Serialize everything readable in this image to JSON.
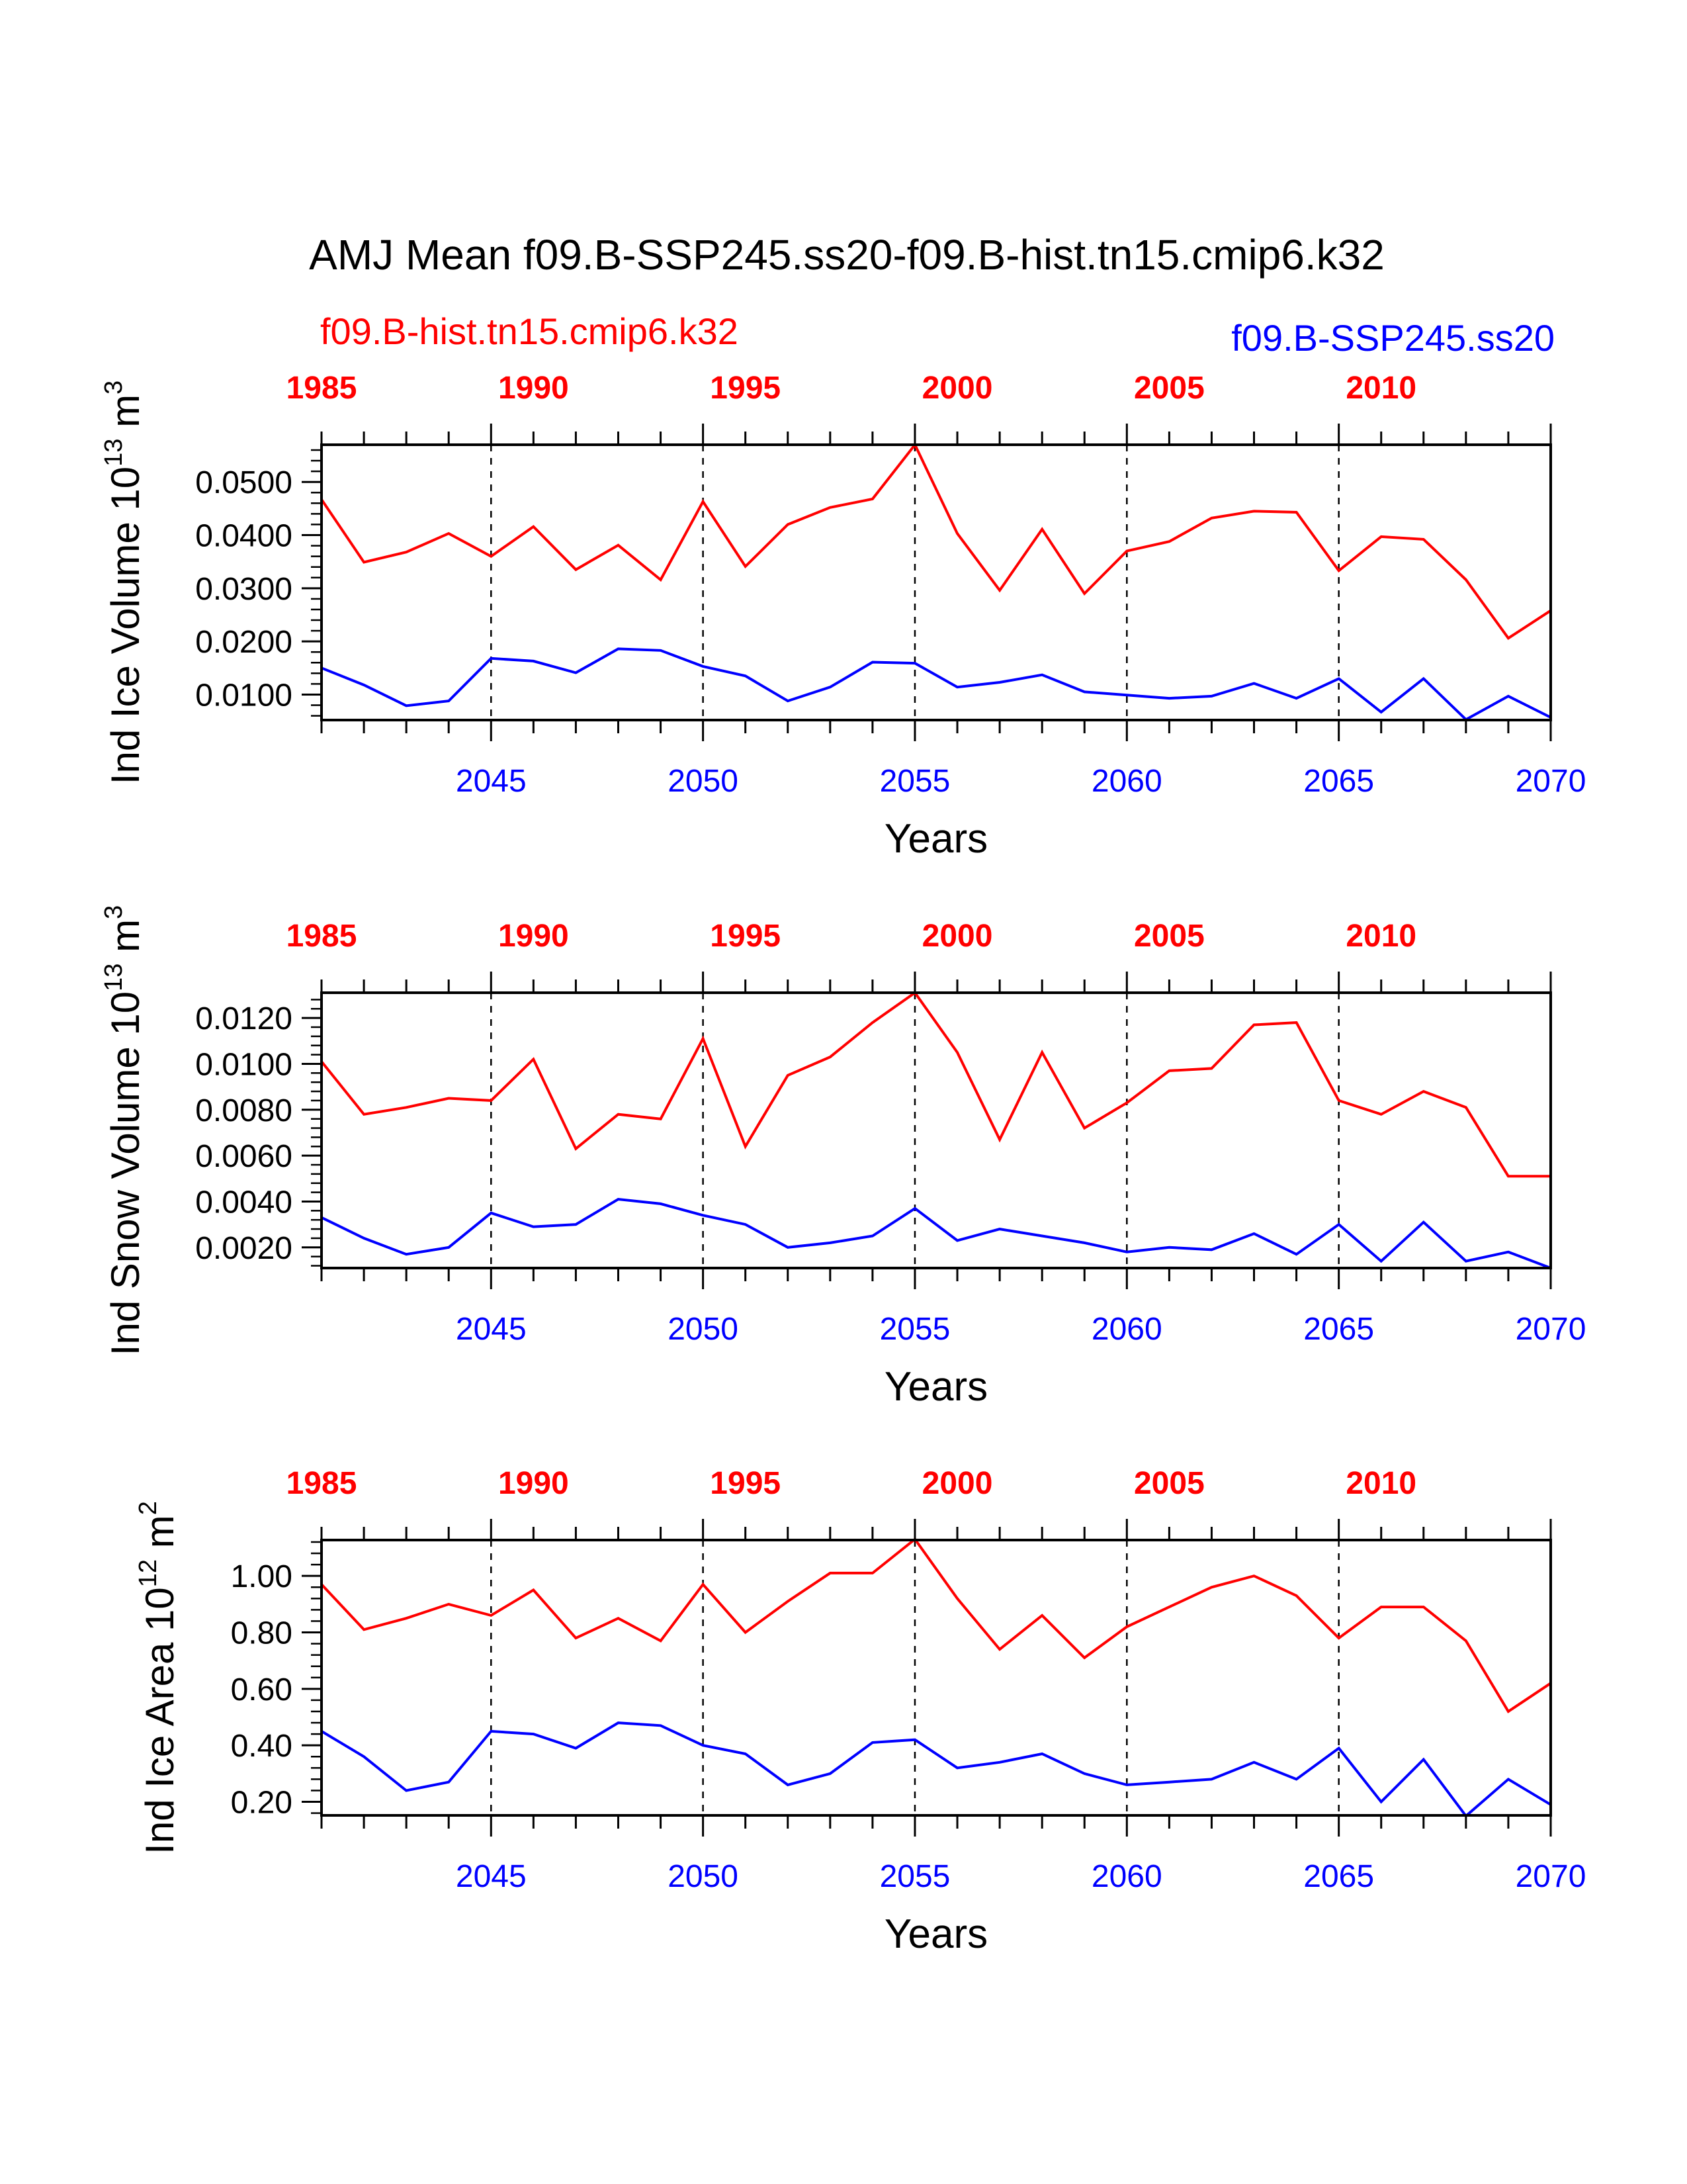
{
  "figure": {
    "title": "AMJ Mean f09.B-SSP245.ss20-f09.B-hist.tn15.cmip6.k32",
    "left_series_label": "f09.B-hist.tn15.cmip6.k32",
    "right_series_label": "f09.B-SSP245.ss20",
    "colors": {
      "hist": "#ff0000",
      "ssp": "#0000ff",
      "axis": "#000000"
    }
  },
  "chart_data": [
    {
      "type": "line",
      "ylabel_main": "Ind Ice Volume 10",
      "ylabel_exp": "13",
      "ylabel_unit": " m",
      "ylabel_unit_exp": "3",
      "xlabel": "Years",
      "ylim": [
        0.0052,
        0.057
      ],
      "yticks": [
        0.01,
        0.02,
        0.03,
        0.04,
        0.05
      ],
      "yticklabels": [
        "0.0100",
        "0.0200",
        "0.0300",
        "0.0400",
        "0.0500"
      ],
      "x_bottom": [
        2041,
        2042,
        2043,
        2044,
        2045,
        2046,
        2047,
        2048,
        2049,
        2050,
        2051,
        2052,
        2053,
        2054,
        2055,
        2056,
        2057,
        2058,
        2059,
        2060,
        2061,
        2062,
        2063,
        2064,
        2065,
        2066,
        2067,
        2068,
        2069,
        2070
      ],
      "x_top": [
        1985,
        1986,
        1987,
        1988,
        1989,
        1990,
        1991,
        1992,
        1993,
        1994,
        1995,
        1996,
        1997,
        1998,
        1999,
        2000,
        2001,
        2002,
        2003,
        2004,
        2005,
        2006,
        2007,
        2008,
        2009,
        2010,
        2011,
        2012,
        2013,
        2014
      ],
      "top_ticklabels": [
        "1985",
        "1990",
        "1995",
        "2000",
        "2005",
        "2010"
      ],
      "bottom_ticklabels": [
        "2045",
        "2050",
        "2055",
        "2060",
        "2065",
        "2070"
      ],
      "series": [
        {
          "name": "f09.B-hist.tn15.cmip6.k32",
          "color": "#ff0000",
          "values": [
            0.0467,
            0.0349,
            0.0368,
            0.0403,
            0.036,
            0.0416,
            0.0335,
            0.0381,
            0.0316,
            0.0463,
            0.0341,
            0.042,
            0.0452,
            0.0468,
            0.057,
            0.0403,
            0.0296,
            0.0411,
            0.029,
            0.037,
            0.0388,
            0.0432,
            0.0445,
            0.0443,
            0.0333,
            0.0397,
            0.0392,
            0.0316,
            0.0206,
            0.0258
          ]
        },
        {
          "name": "f09.B-SSP245.ss20",
          "color": "#0000ff",
          "values": [
            0.015,
            0.0118,
            0.0079,
            0.0088,
            0.0168,
            0.0163,
            0.0141,
            0.0186,
            0.0183,
            0.0153,
            0.0135,
            0.0088,
            0.0114,
            0.0161,
            0.0159,
            0.0114,
            0.0123,
            0.0137,
            0.0105,
            0.0099,
            0.0093,
            0.0097,
            0.0121,
            0.0093,
            0.013,
            0.0067,
            0.013,
            0.0053,
            0.0097,
            0.0057
          ]
        }
      ]
    },
    {
      "type": "line",
      "ylabel_main": "Ind Snow Volume 10",
      "ylabel_exp": "13",
      "ylabel_unit": " m",
      "ylabel_unit_exp": "3",
      "xlabel": "Years",
      "ylim": [
        0.0011,
        0.0131
      ],
      "yticks": [
        0.002,
        0.004,
        0.006,
        0.008,
        0.01,
        0.012
      ],
      "yticklabels": [
        "0.0020",
        "0.0040",
        "0.0060",
        "0.0080",
        "0.0100",
        "0.0120"
      ],
      "x_bottom": [
        2041,
        2042,
        2043,
        2044,
        2045,
        2046,
        2047,
        2048,
        2049,
        2050,
        2051,
        2052,
        2053,
        2054,
        2055,
        2056,
        2057,
        2058,
        2059,
        2060,
        2061,
        2062,
        2063,
        2064,
        2065,
        2066,
        2067,
        2068,
        2069,
        2070
      ],
      "x_top": [
        1985,
        1986,
        1987,
        1988,
        1989,
        1990,
        1991,
        1992,
        1993,
        1994,
        1995,
        1996,
        1997,
        1998,
        1999,
        2000,
        2001,
        2002,
        2003,
        2004,
        2005,
        2006,
        2007,
        2008,
        2009,
        2010,
        2011,
        2012,
        2013,
        2014
      ],
      "top_ticklabels": [
        "1985",
        "1990",
        "1995",
        "2000",
        "2005",
        "2010"
      ],
      "bottom_ticklabels": [
        "2045",
        "2050",
        "2055",
        "2060",
        "2065",
        "2070"
      ],
      "series": [
        {
          "name": "f09.B-hist.tn15.cmip6.k32",
          "color": "#ff0000",
          "values": [
            0.0101,
            0.0078,
            0.0081,
            0.0085,
            0.0084,
            0.0102,
            0.0063,
            0.0078,
            0.0076,
            0.0111,
            0.0064,
            0.0095,
            0.0103,
            0.0118,
            0.0131,
            0.0105,
            0.0067,
            0.0105,
            0.0072,
            0.0083,
            0.0097,
            0.0098,
            0.0117,
            0.0118,
            0.0084,
            0.0078,
            0.0088,
            0.0081,
            0.0051,
            0.0051
          ]
        },
        {
          "name": "f09.B-SSP245.ss20",
          "color": "#0000ff",
          "values": [
            0.0033,
            0.0024,
            0.0017,
            0.002,
            0.0035,
            0.0029,
            0.003,
            0.0041,
            0.0039,
            0.0034,
            0.003,
            0.002,
            0.0022,
            0.0025,
            0.0037,
            0.0023,
            0.0028,
            0.0025,
            0.0022,
            0.0018,
            0.002,
            0.0019,
            0.0026,
            0.0017,
            0.003,
            0.0014,
            0.0031,
            0.0014,
            0.0018,
            0.0011
          ]
        }
      ]
    },
    {
      "type": "line",
      "ylabel_main": "Ind Ice Area 10",
      "ylabel_exp": "12",
      "ylabel_unit": " m",
      "ylabel_unit_exp": "2",
      "xlabel": "Years",
      "ylim": [
        0.152,
        1.127
      ],
      "yticks": [
        0.2,
        0.4,
        0.6,
        0.8,
        1.0
      ],
      "yticklabels": [
        "0.20",
        "0.40",
        "0.60",
        "0.80",
        "1.00"
      ],
      "x_bottom": [
        2041,
        2042,
        2043,
        2044,
        2045,
        2046,
        2047,
        2048,
        2049,
        2050,
        2051,
        2052,
        2053,
        2054,
        2055,
        2056,
        2057,
        2058,
        2059,
        2060,
        2061,
        2062,
        2063,
        2064,
        2065,
        2066,
        2067,
        2068,
        2069,
        2070
      ],
      "x_top": [
        1985,
        1986,
        1987,
        1988,
        1989,
        1990,
        1991,
        1992,
        1993,
        1994,
        1995,
        1996,
        1997,
        1998,
        1999,
        2000,
        2001,
        2002,
        2003,
        2004,
        2005,
        2006,
        2007,
        2008,
        2009,
        2010,
        2011,
        2012,
        2013,
        2014
      ],
      "top_ticklabels": [
        "1985",
        "1990",
        "1995",
        "2000",
        "2005",
        "2010"
      ],
      "bottom_ticklabels": [
        "2045",
        "2050",
        "2055",
        "2060",
        "2065",
        "2070"
      ],
      "series": [
        {
          "name": "f09.B-hist.tn15.cmip6.k32",
          "color": "#ff0000",
          "values": [
            0.97,
            0.81,
            0.85,
            0.9,
            0.86,
            0.95,
            0.78,
            0.85,
            0.77,
            0.97,
            0.8,
            0.91,
            1.01,
            1.01,
            1.13,
            0.92,
            0.74,
            0.86,
            0.71,
            0.82,
            0.89,
            0.96,
            1.0,
            0.93,
            0.78,
            0.89,
            0.89,
            0.77,
            0.52,
            0.62
          ]
        },
        {
          "name": "f09.B-SSP245.ss20",
          "color": "#0000ff",
          "values": [
            0.45,
            0.36,
            0.24,
            0.27,
            0.45,
            0.44,
            0.39,
            0.48,
            0.47,
            0.4,
            0.37,
            0.26,
            0.3,
            0.41,
            0.42,
            0.32,
            0.34,
            0.37,
            0.3,
            0.26,
            0.27,
            0.28,
            0.34,
            0.28,
            0.39,
            0.2,
            0.35,
            0.15,
            0.28,
            0.19
          ]
        }
      ]
    }
  ]
}
